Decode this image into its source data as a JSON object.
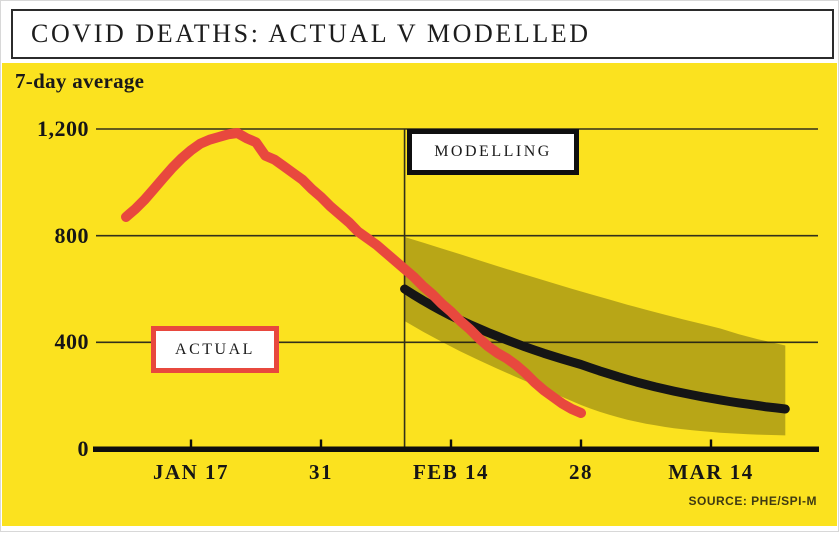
{
  "header": {
    "title": "COVID DEATHS: ACTUAL V MODELLED"
  },
  "colors": {
    "background_yellow": "#fbe21f",
    "actual_red": "#e8483e",
    "model_black": "#151515",
    "band_olive": "rgba(30,28,8,0.30)",
    "axis_black": "#0d0d0d",
    "grid_line": "#32301a"
  },
  "chart_data": {
    "type": "line",
    "title": "COVID DEATHS: ACTUAL V MODELLED",
    "subtitle": "7-day average",
    "source": "SOURCE: PHE/SPI-M",
    "x_axis": {
      "unit": "day of year 2021 (1 = Jan 1)",
      "ticks": [
        {
          "day": 17,
          "label": "JAN 17"
        },
        {
          "day": 31,
          "label": "31"
        },
        {
          "day": 45,
          "label": "FEB 14"
        },
        {
          "day": 59,
          "label": "28"
        },
        {
          "day": 73,
          "label": "MAR 14"
        }
      ]
    },
    "y_axis": {
      "label": "7-day average",
      "range": [
        0,
        1200
      ],
      "grid": true,
      "ticks": [
        {
          "value": 1200,
          "label": "1,200"
        },
        {
          "value": 800,
          "label": "800"
        },
        {
          "value": 400,
          "label": "400"
        },
        {
          "value": 0,
          "label": "0"
        }
      ]
    },
    "model_start_day": 40,
    "annotations": {
      "actual": {
        "label": "ACTUAL"
      },
      "modelling": {
        "label": "MODELLING"
      }
    },
    "series": [
      {
        "name": "actual",
        "type": "line",
        "color": "#e8483e",
        "points": [
          [
            10,
            870
          ],
          [
            11,
            900
          ],
          [
            12,
            935
          ],
          [
            13,
            975
          ],
          [
            14,
            1015
          ],
          [
            15,
            1055
          ],
          [
            16,
            1090
          ],
          [
            17,
            1120
          ],
          [
            18,
            1145
          ],
          [
            19,
            1160
          ],
          [
            20,
            1170
          ],
          [
            21,
            1180
          ],
          [
            22,
            1185
          ],
          [
            23,
            1165
          ],
          [
            24,
            1150
          ],
          [
            25,
            1100
          ],
          [
            26,
            1085
          ],
          [
            27,
            1060
          ],
          [
            28,
            1035
          ],
          [
            29,
            1010
          ],
          [
            30,
            975
          ],
          [
            31,
            945
          ],
          [
            32,
            910
          ],
          [
            33,
            880
          ],
          [
            34,
            850
          ],
          [
            35,
            815
          ],
          [
            36,
            790
          ],
          [
            37,
            765
          ],
          [
            38,
            735
          ],
          [
            39,
            705
          ],
          [
            40,
            675
          ],
          [
            41,
            645
          ],
          [
            42,
            610
          ],
          [
            43,
            580
          ],
          [
            44,
            545
          ],
          [
            45,
            515
          ],
          [
            46,
            480
          ],
          [
            47,
            450
          ],
          [
            48,
            415
          ],
          [
            49,
            385
          ],
          [
            50,
            360
          ],
          [
            51,
            340
          ],
          [
            52,
            315
          ],
          [
            53,
            285
          ],
          [
            54,
            250
          ],
          [
            55,
            220
          ],
          [
            56,
            195
          ],
          [
            57,
            170
          ],
          [
            58,
            150
          ],
          [
            59,
            135
          ]
        ]
      },
      {
        "name": "modelled_central",
        "type": "line",
        "color": "#151515",
        "points": [
          [
            40,
            600
          ],
          [
            41,
            578
          ],
          [
            42,
            557
          ],
          [
            43,
            537
          ],
          [
            44,
            518
          ],
          [
            45,
            500
          ],
          [
            46,
            483
          ],
          [
            47,
            467
          ],
          [
            48,
            452
          ],
          [
            49,
            437
          ],
          [
            50,
            423
          ],
          [
            51,
            409
          ],
          [
            52,
            396
          ],
          [
            53,
            383
          ],
          [
            54,
            371
          ],
          [
            55,
            359
          ],
          [
            56,
            348
          ],
          [
            57,
            337
          ],
          [
            58,
            327
          ],
          [
            59,
            317
          ],
          [
            60,
            305
          ],
          [
            61,
            293
          ],
          [
            62,
            282
          ],
          [
            63,
            271
          ],
          [
            64,
            261
          ],
          [
            65,
            251
          ],
          [
            66,
            242
          ],
          [
            67,
            233
          ],
          [
            68,
            225
          ],
          [
            69,
            217
          ],
          [
            70,
            210
          ],
          [
            71,
            203
          ],
          [
            72,
            196
          ],
          [
            73,
            190
          ],
          [
            74,
            184
          ],
          [
            75,
            178
          ],
          [
            76,
            173
          ],
          [
            77,
            168
          ],
          [
            78,
            163
          ],
          [
            79,
            158
          ],
          [
            80,
            154
          ],
          [
            81,
            150
          ]
        ]
      },
      {
        "name": "modelled_range",
        "type": "band",
        "color": "rgba(30,28,8,0.30)",
        "upper": [
          [
            40,
            795
          ],
          [
            42,
            774
          ],
          [
            44,
            752
          ],
          [
            46,
            730
          ],
          [
            48,
            708
          ],
          [
            50,
            686
          ],
          [
            52,
            664
          ],
          [
            54,
            643
          ],
          [
            56,
            622
          ],
          [
            58,
            601
          ],
          [
            60,
            581
          ],
          [
            62,
            561
          ],
          [
            64,
            541
          ],
          [
            66,
            522
          ],
          [
            68,
            504
          ],
          [
            70,
            486
          ],
          [
            72,
            469
          ],
          [
            74,
            452
          ],
          [
            76,
            430
          ],
          [
            78,
            412
          ],
          [
            80,
            396
          ],
          [
            81,
            388
          ]
        ],
        "lower": [
          [
            40,
            480
          ],
          [
            42,
            440
          ],
          [
            44,
            402
          ],
          [
            46,
            366
          ],
          [
            48,
            333
          ],
          [
            50,
            301
          ],
          [
            52,
            270
          ],
          [
            54,
            240
          ],
          [
            56,
            210
          ],
          [
            58,
            180
          ],
          [
            59,
            165
          ],
          [
            60,
            152
          ],
          [
            61,
            140
          ],
          [
            62,
            129
          ],
          [
            63,
            119
          ],
          [
            64,
            110
          ],
          [
            65,
            102
          ],
          [
            66,
            95
          ],
          [
            67,
            89
          ],
          [
            68,
            83
          ],
          [
            69,
            78
          ],
          [
            70,
            74
          ],
          [
            71,
            70
          ],
          [
            72,
            67
          ],
          [
            73,
            64
          ],
          [
            74,
            61
          ],
          [
            75,
            59
          ],
          [
            76,
            57
          ],
          [
            77,
            55
          ],
          [
            78,
            54
          ],
          [
            79,
            53
          ],
          [
            80,
            52
          ],
          [
            81,
            51
          ]
        ]
      }
    ]
  }
}
